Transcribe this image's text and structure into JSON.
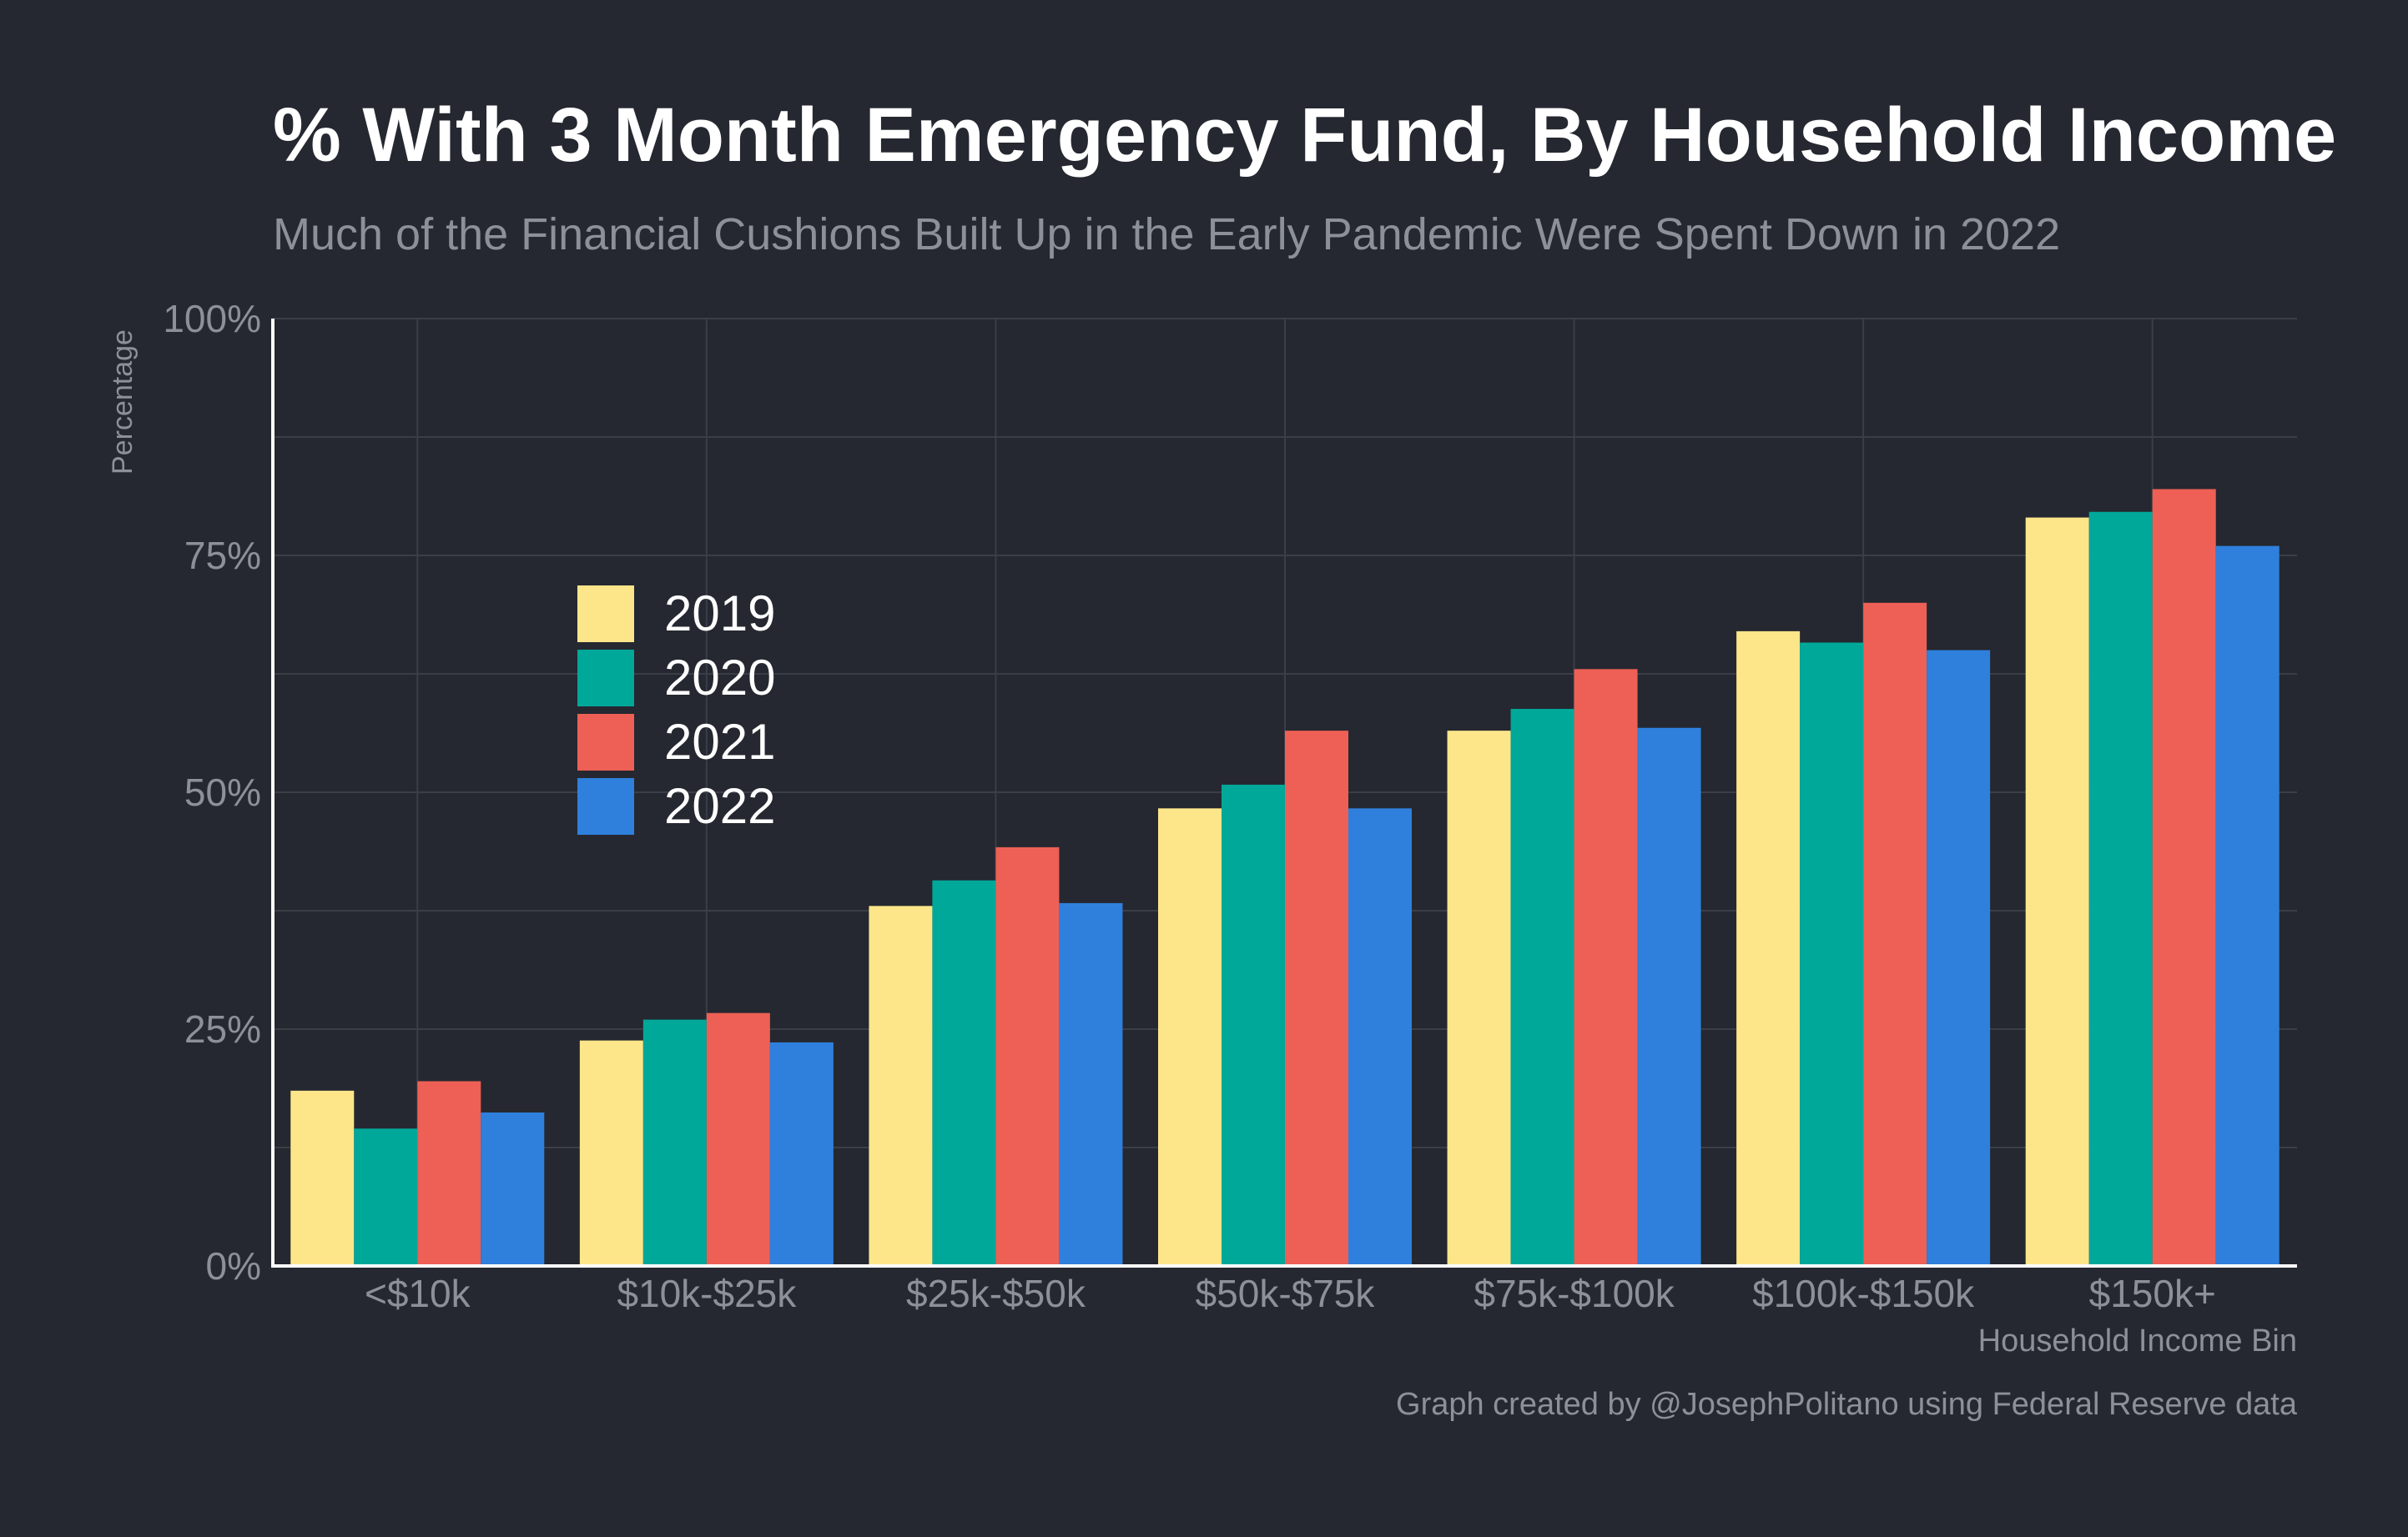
{
  "chart_data": {
    "type": "bar",
    "title": "% With 3 Month Emergency Fund, By Household Income",
    "subtitle": "Much of the Financial Cushions Built Up in the Early Pandemic Were Spent Down in 2022",
    "xlabel": "Household Income Bin",
    "ylabel": "Percentage",
    "caption": "Graph created by @JosephPolitano using Federal Reserve data",
    "categories": [
      "<$10k",
      "$10k-$25k",
      "$25k-$50k",
      "$50k-$75k",
      "$75k-$100k",
      "$100k-$150k",
      "$150k+"
    ],
    "series": [
      {
        "name": "2019",
        "color": "#fde68a",
        "values": [
          18.5,
          23.8,
          38.0,
          48.3,
          56.5,
          67.0,
          79.0
        ]
      },
      {
        "name": "2020",
        "color": "#00a89a",
        "values": [
          14.5,
          26.0,
          40.7,
          50.8,
          58.8,
          65.8,
          79.6
        ]
      },
      {
        "name": "2021",
        "color": "#ee6055",
        "values": [
          19.5,
          26.7,
          44.2,
          56.5,
          63.0,
          70.0,
          82.0
        ]
      },
      {
        "name": "2022",
        "color": "#2f80dc",
        "values": [
          16.2,
          23.6,
          38.3,
          48.3,
          56.8,
          65.0,
          76.0
        ]
      }
    ],
    "ylim": [
      0,
      100
    ],
    "yticks": [
      0,
      25,
      50,
      75,
      100
    ],
    "ytick_labels": [
      "0%",
      "25%",
      "50%",
      "75%",
      "100%"
    ],
    "grid": true,
    "legend_position": "upper-left-inside",
    "colors": {
      "background": "#252830",
      "grid": "#3a3e47",
      "axis": "#ffffff",
      "muted_text": "#8c9099"
    }
  }
}
